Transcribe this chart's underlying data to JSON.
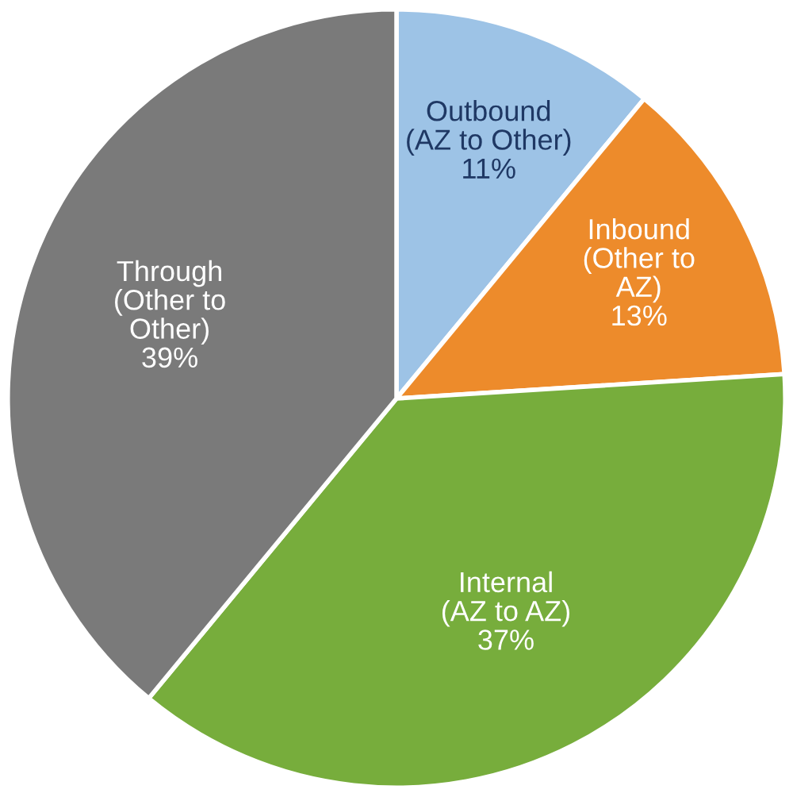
{
  "chart_data": {
    "type": "pie",
    "categories": [
      "Outbound\n(AZ to Other)",
      "Inbound\n(Other to\nAZ)",
      "Internal\n(AZ to AZ)",
      "Through\n(Other to\nOther)"
    ],
    "values": [
      11,
      13,
      37,
      39
    ],
    "colors": [
      "#9dc3e6",
      "#ed8b2b",
      "#77ad3c",
      "#7a7a7a"
    ],
    "value_labels": [
      "11%",
      "13%",
      "37%",
      "39%"
    ]
  }
}
